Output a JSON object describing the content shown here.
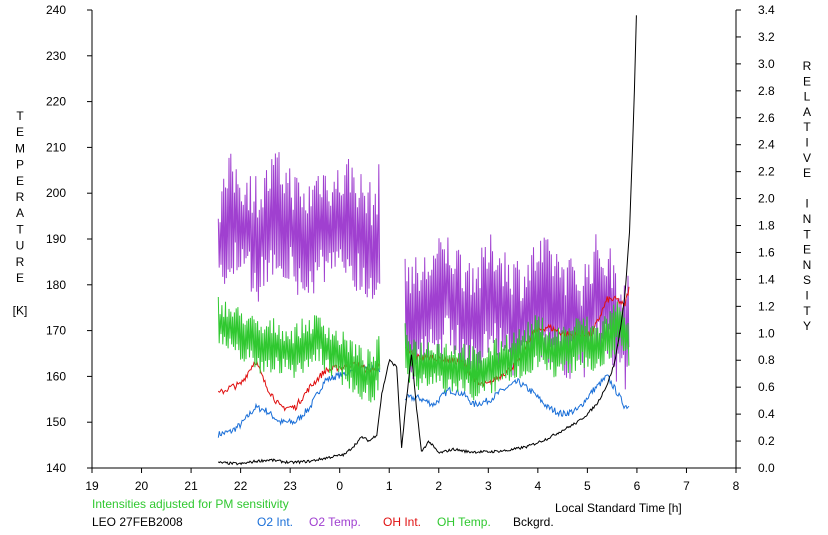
{
  "chart_data": {
    "type": "line",
    "xlabel": "Local Standard Time [h]",
    "ylabel_left": [
      "T",
      "E",
      "M",
      "P",
      "E",
      "R",
      "A",
      "T",
      "U",
      "R",
      "E",
      "",
      "[K]"
    ],
    "ylabel_right": [
      "R",
      "E",
      "L",
      "A",
      "T",
      "I",
      "V",
      "E",
      "",
      "I",
      "N",
      "T",
      "E",
      "N",
      "S",
      "I",
      "T",
      "Y"
    ],
    "x_ticks": [
      "19",
      "20",
      "21",
      "22",
      "23",
      "0",
      "1",
      "2",
      "3",
      "4",
      "5",
      "6",
      "7",
      "8"
    ],
    "x_range": [
      19,
      32
    ],
    "y_left_ticks": [
      "140",
      "150",
      "160",
      "170",
      "180",
      "190",
      "200",
      "210",
      "220",
      "230",
      "240"
    ],
    "y_left_range": [
      140,
      240
    ],
    "y_right_ticks": [
      "0.0",
      "0.2",
      "0.4",
      "0.6",
      "0.8",
      "1.0",
      "1.2",
      "1.4",
      "1.6",
      "1.8",
      "2.0",
      "2.2",
      "2.4",
      "2.6",
      "2.8",
      "3.0",
      "3.2",
      "3.4"
    ],
    "y_right_range": [
      0,
      3.4
    ],
    "note": "Intensities adjusted for PM sensitivity",
    "station": "LEO 27FEB2008",
    "series": [
      {
        "name": "O2 Int.",
        "color": "#1a6fd8",
        "axis": "right",
        "x": [
          21.55,
          21.8,
          22.0,
          22.3,
          22.5,
          22.8,
          23.1,
          23.4,
          23.7,
          24.0,
          24.3,
          24.6,
          24.8,
          25.3,
          25.6,
          25.9,
          26.2,
          26.5,
          26.7,
          27.0,
          27.3,
          27.6,
          27.9,
          28.2,
          28.5,
          28.8,
          29.1,
          29.4,
          29.6,
          29.75,
          29.85
        ],
        "y": [
          0.25,
          0.27,
          0.32,
          0.45,
          0.43,
          0.34,
          0.34,
          0.45,
          0.65,
          0.69,
          0.72,
          0.75,
          0.72,
          0.52,
          0.52,
          0.47,
          0.58,
          0.55,
          0.47,
          0.5,
          0.58,
          0.64,
          0.56,
          0.45,
          0.4,
          0.43,
          0.57,
          0.68,
          0.56,
          0.46,
          0.46
        ]
      },
      {
        "name": "O2 Temp.",
        "color": "#a040d0",
        "axis": "left",
        "x": [
          21.55,
          21.8,
          22.1,
          22.4,
          22.7,
          23.0,
          23.3,
          23.6,
          23.9,
          24.2,
          24.5,
          24.7,
          24.8,
          25.3,
          25.6,
          25.9,
          26.2,
          26.5,
          26.8,
          27.1,
          27.4,
          27.7,
          28.0,
          28.3,
          28.6,
          28.9,
          29.2,
          29.5,
          29.7,
          29.85
        ],
        "y": [
          188,
          195,
          192,
          190,
          196,
          193,
          188,
          194,
          192,
          195,
          190,
          188,
          193,
          175,
          172,
          176,
          178,
          174,
          173,
          178,
          174,
          172,
          177,
          176,
          173,
          171,
          178,
          174,
          170,
          172
        ],
        "amp": 14
      },
      {
        "name": "OH Int.",
        "color": "#e01010",
        "axis": "right",
        "x": [
          21.55,
          21.8,
          22.0,
          22.3,
          22.5,
          22.8,
          23.1,
          23.4,
          23.7,
          24.0,
          24.3,
          24.6,
          24.8,
          25.3,
          25.6,
          25.9,
          26.2,
          26.5,
          26.8,
          27.0,
          27.3,
          27.6,
          27.9,
          28.2,
          28.5,
          28.8,
          29.1,
          29.4,
          29.6,
          29.75,
          29.85
        ],
        "y": [
          0.55,
          0.6,
          0.62,
          0.8,
          0.62,
          0.45,
          0.45,
          0.6,
          0.72,
          0.75,
          0.77,
          0.72,
          0.75,
          0.88,
          0.82,
          0.82,
          0.8,
          0.78,
          0.62,
          0.62,
          0.7,
          0.78,
          1.0,
          1.05,
          1.0,
          0.98,
          1.0,
          1.25,
          1.25,
          1.2,
          1.35
        ]
      },
      {
        "name": "OH Temp.",
        "color": "#30c830",
        "axis": "left",
        "x": [
          21.55,
          21.8,
          22.1,
          22.4,
          22.7,
          23.0,
          23.3,
          23.6,
          23.9,
          24.2,
          24.5,
          24.7,
          24.8,
          25.3,
          25.6,
          25.9,
          26.2,
          26.5,
          26.8,
          27.1,
          27.4,
          27.7,
          28.0,
          28.3,
          28.6,
          28.9,
          29.2,
          29.5,
          29.7,
          29.85
        ],
        "y": [
          172,
          170,
          169,
          166,
          167,
          165,
          167,
          168,
          165,
          163,
          160,
          160,
          164,
          166,
          162,
          163,
          162,
          162,
          160,
          162,
          164,
          165,
          168,
          165,
          166,
          168,
          166,
          170,
          172,
          167
        ],
        "amp": 6
      },
      {
        "name": "Bckgrd.",
        "color": "#000000",
        "axis": "right",
        "x": [
          21.55,
          22.0,
          22.3,
          22.6,
          23.0,
          23.4,
          23.8,
          24.1,
          24.3,
          24.45,
          24.6,
          24.75,
          24.85,
          25.0,
          25.15,
          25.25,
          25.35,
          25.45,
          25.55,
          25.65,
          25.8,
          26.0,
          26.3,
          26.6,
          27.0,
          27.4,
          27.8,
          28.2,
          28.5,
          28.8,
          29.0,
          29.2,
          29.4,
          29.55,
          29.65,
          29.75,
          29.85,
          29.95,
          30.0
        ],
        "y": [
          0.04,
          0.03,
          0.05,
          0.06,
          0.04,
          0.05,
          0.08,
          0.1,
          0.17,
          0.23,
          0.2,
          0.25,
          0.55,
          0.8,
          0.75,
          0.15,
          0.52,
          0.84,
          0.45,
          0.12,
          0.2,
          0.11,
          0.14,
          0.12,
          0.12,
          0.13,
          0.16,
          0.22,
          0.28,
          0.34,
          0.4,
          0.48,
          0.62,
          0.78,
          1.0,
          1.25,
          1.75,
          2.8,
          3.5
        ]
      }
    ],
    "legend_position": "bottom"
  }
}
